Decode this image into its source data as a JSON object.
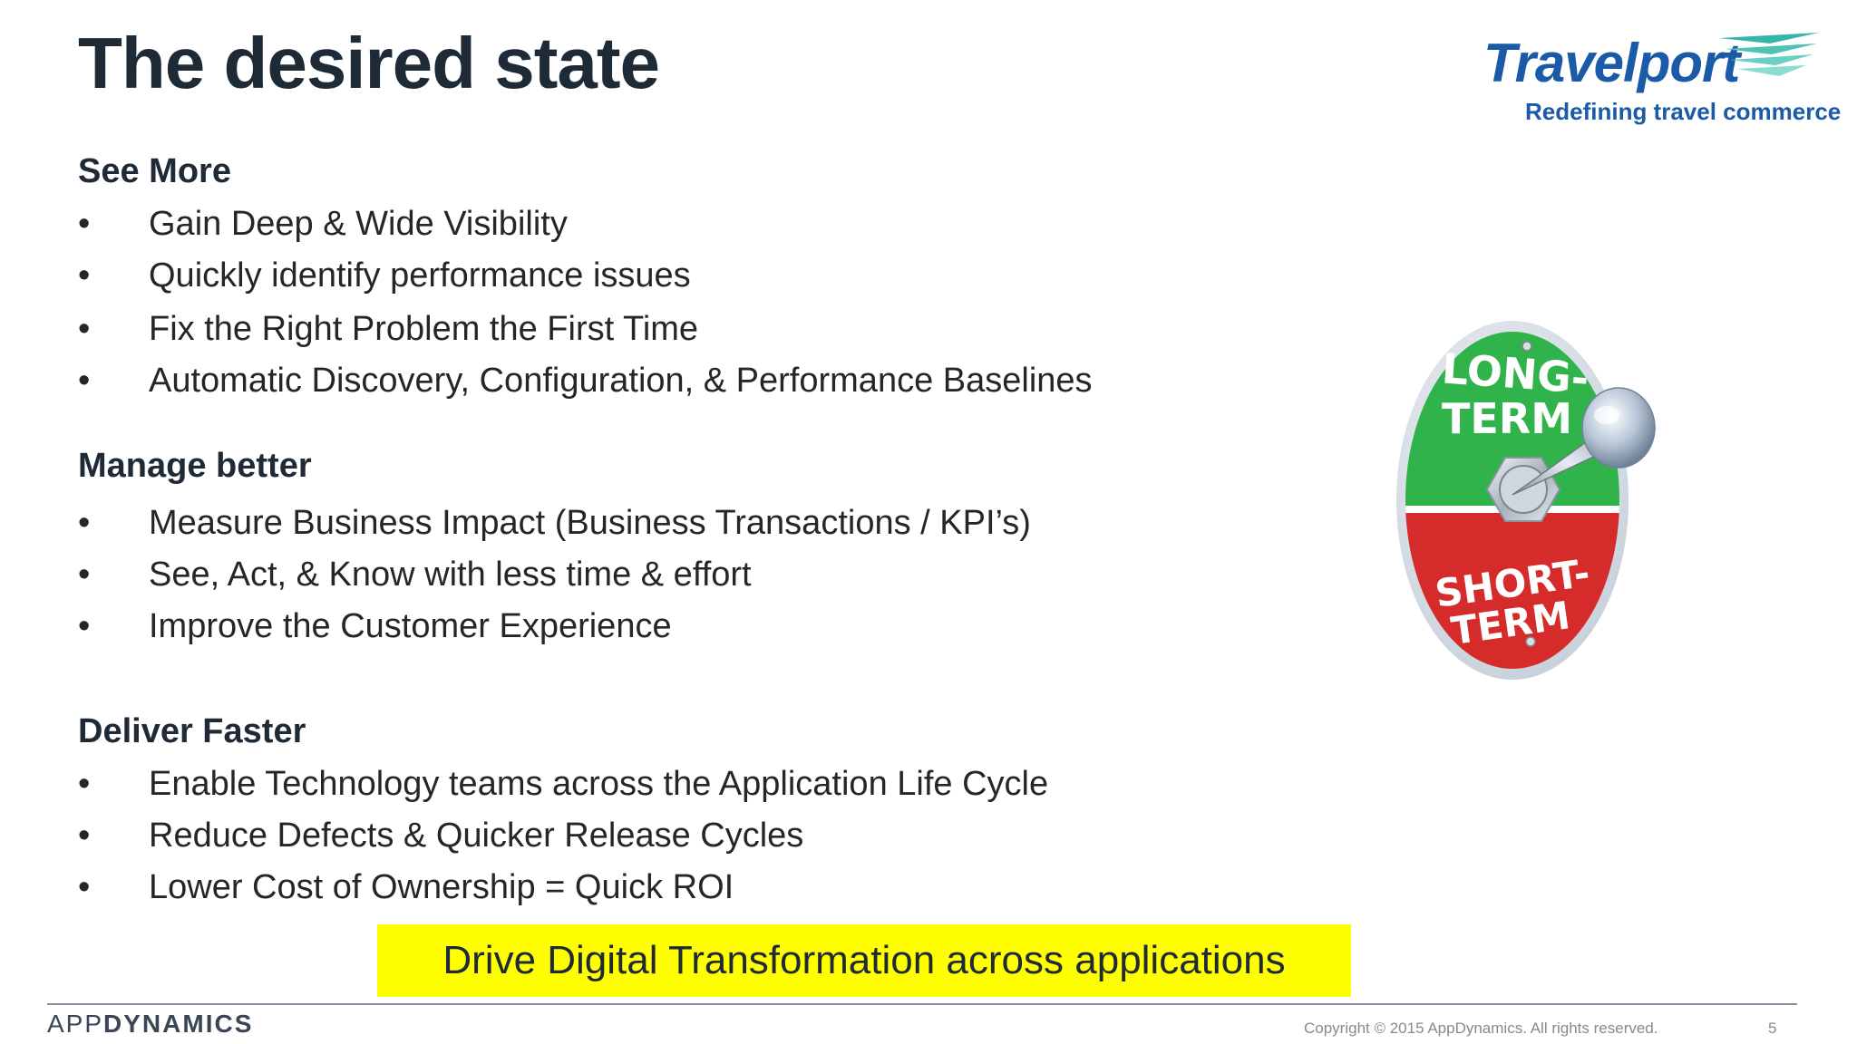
{
  "slide": {
    "title": "The desired state",
    "logo": {
      "wordmark": "Travelport",
      "tagline": "Redefining travel commerce"
    },
    "sections": [
      {
        "heading": "See More",
        "bullets": [
          "Gain Deep & Wide Visibility",
          "Quickly identify performance issues",
          "Fix the Right Problem the First Time",
          "Automatic Discovery, Configuration, & Performance Baselines"
        ]
      },
      {
        "heading": "Manage better",
        "bullets": [
          "Measure Business Impact (Business Transactions / KPI’s)",
          "See, Act, & Know with less time & effort",
          "Improve the Customer Experience"
        ]
      },
      {
        "heading": "Deliver Faster",
        "bullets": [
          "Enable Technology teams across the Application Life Cycle",
          "Reduce Defects & Quicker Release Cycles",
          "Lower Cost of Ownership = Quick ROI"
        ]
      }
    ],
    "bullet_glyph": "•",
    "highlight": "Drive Digital Transformation across applications",
    "switch_image": {
      "top_label_1": "LONG-",
      "top_label_2": "TERM",
      "bottom_label_1": "SHORT-",
      "bottom_label_2": "TERM"
    }
  },
  "footer": {
    "brand_light": "APP",
    "brand_bold": "DYNAMICS",
    "copyright": "Copyright © 2015 AppDynamics. All rights reserved.",
    "page_number": "5"
  },
  "colors": {
    "title": "#1f2a37",
    "logo_blue": "#1a5aa6",
    "highlight_bg": "#ffff00",
    "switch_green": "#2fb34a",
    "switch_red": "#d52b2b"
  }
}
